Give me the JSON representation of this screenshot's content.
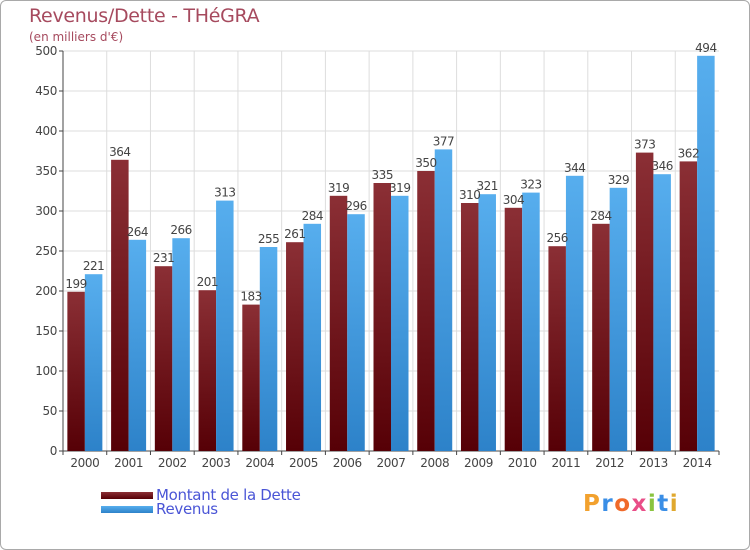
{
  "chart_data": {
    "type": "bar",
    "title": "Revenus/Dette - THéGRA",
    "subtitle": "(en milliers d'€)",
    "categories": [
      "2000",
      "2001",
      "2002",
      "2003",
      "2004",
      "2005",
      "2006",
      "2007",
      "2008",
      "2009",
      "2010",
      "2011",
      "2012",
      "2013",
      "2014"
    ],
    "series": [
      {
        "name": "Montant de la Dette",
        "color": "#6b1015",
        "values": [
          199,
          364,
          231,
          201,
          183,
          261,
          319,
          335,
          350,
          310,
          304,
          256,
          284,
          373,
          362
        ]
      },
      {
        "name": "Revenus",
        "color": "#3f9ee5",
        "values": [
          221,
          264,
          266,
          313,
          255,
          284,
          296,
          319,
          377,
          321,
          323,
          344,
          329,
          346,
          494
        ]
      }
    ],
    "ylim": [
      0,
      500
    ],
    "yticks": [
      0,
      50,
      100,
      150,
      200,
      250,
      300,
      350,
      400,
      450,
      500
    ],
    "grid": true,
    "legend": "bottom-left"
  },
  "logo": {
    "letters": [
      "P",
      "r",
      "o",
      "x",
      "i",
      "t",
      "i"
    ],
    "colors": [
      "#f2a12e",
      "#3a8ee6",
      "#f06a2a",
      "#e94e88",
      "#8ac43f",
      "#3a8ee6",
      "#e0a82e"
    ]
  }
}
